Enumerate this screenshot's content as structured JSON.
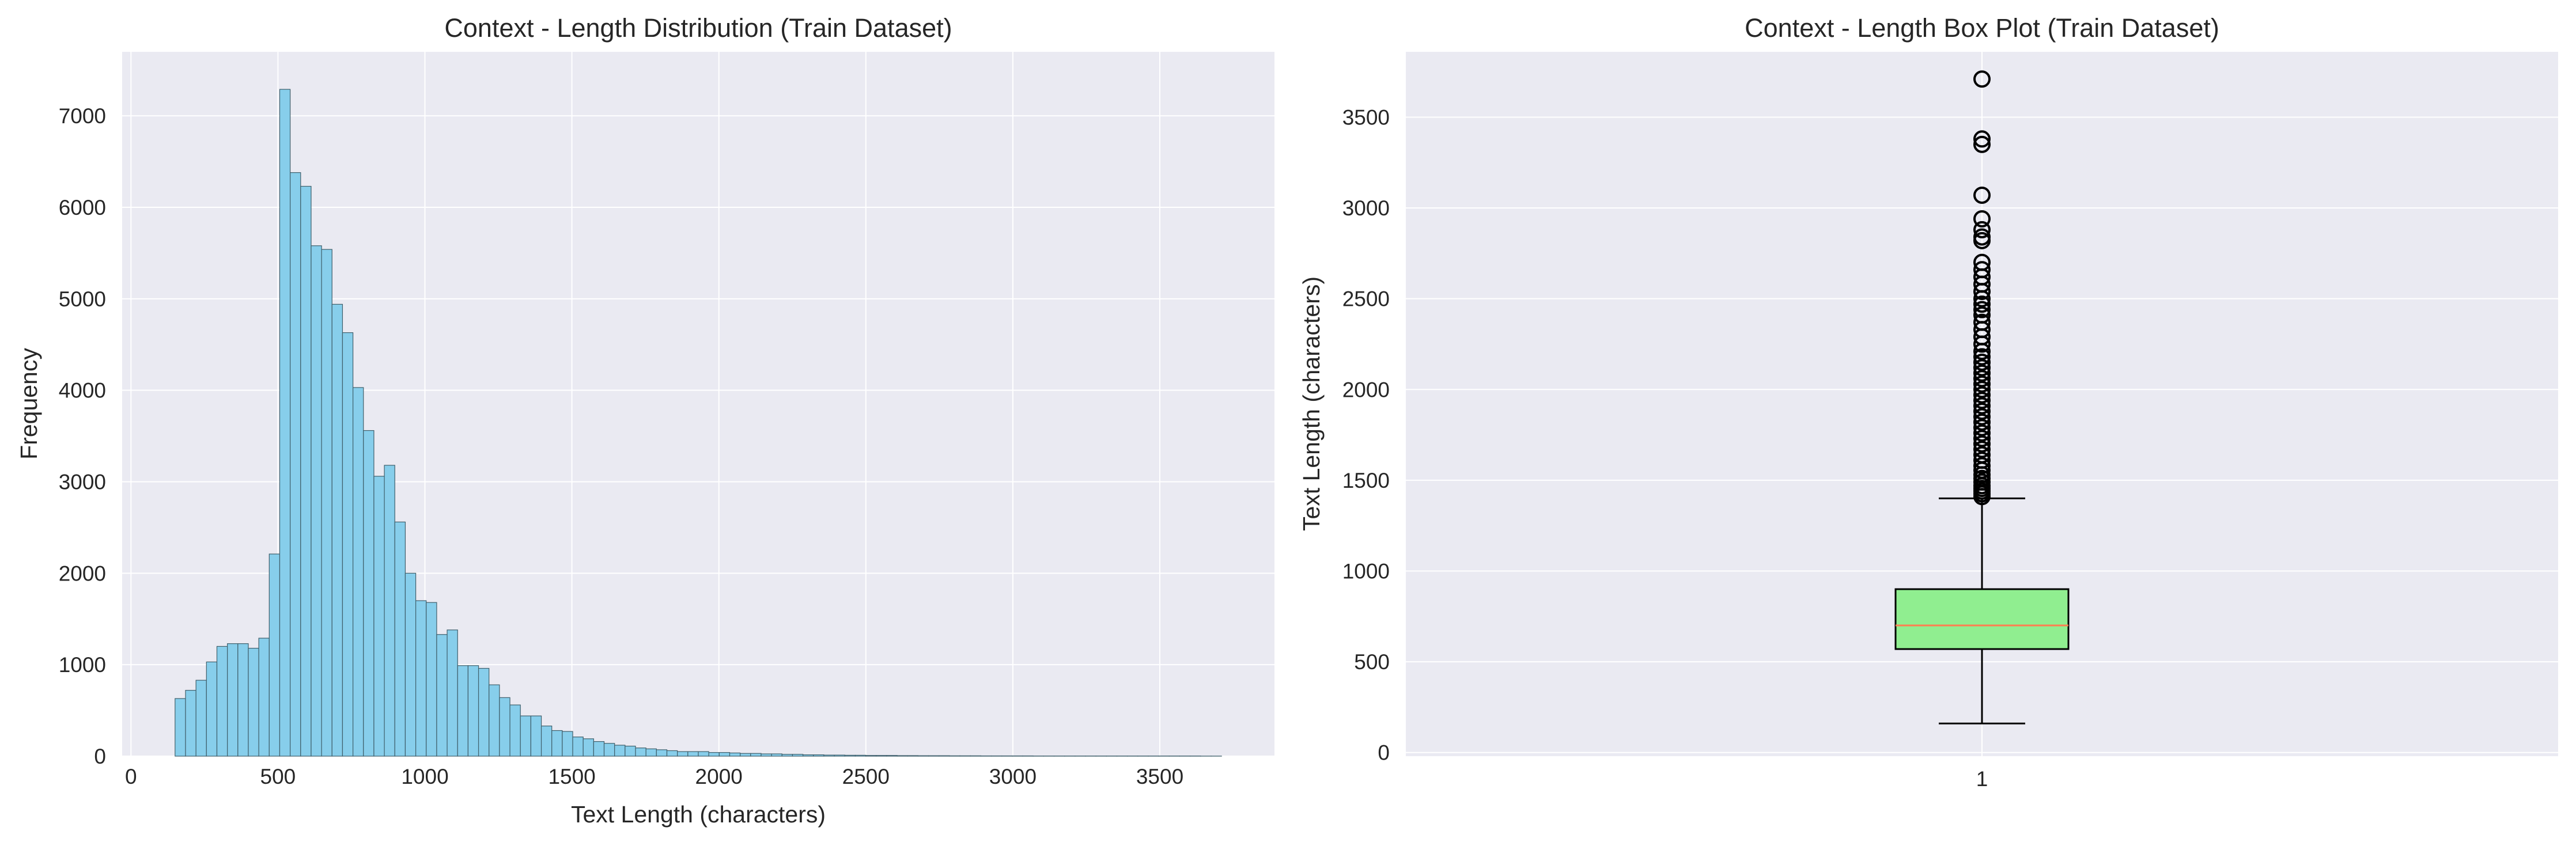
{
  "chart_data": [
    {
      "type": "bar",
      "subtype": "histogram",
      "title": "Context - Length Distribution (Train Dataset)",
      "xlabel": "Text Length (characters)",
      "ylabel": "Frequency",
      "xlim": [
        -30,
        3890
      ],
      "ylim": [
        0,
        7700
      ],
      "xticks": [
        0,
        500,
        1000,
        1500,
        2000,
        2500,
        3000,
        3500
      ],
      "yticks": [
        0,
        1000,
        2000,
        3000,
        4000,
        5000,
        6000,
        7000
      ],
      "grid": true,
      "bin_start": 150,
      "bin_width": 35.6,
      "values": [
        630,
        720,
        830,
        1030,
        1200,
        1230,
        1230,
        1180,
        1290,
        2210,
        7290,
        6380,
        6230,
        5580,
        5540,
        4940,
        4630,
        4030,
        3560,
        3060,
        3180,
        2560,
        2000,
        1700,
        1680,
        1330,
        1380,
        990,
        990,
        960,
        780,
        640,
        560,
        440,
        440,
        330,
        280,
        270,
        210,
        190,
        160,
        140,
        120,
        110,
        90,
        80,
        70,
        60,
        50,
        50,
        50,
        40,
        40,
        35,
        30,
        30,
        25,
        25,
        20,
        20,
        15,
        15,
        12,
        12,
        10,
        10,
        8,
        8,
        8,
        6,
        6,
        5,
        5,
        5,
        4,
        4,
        4,
        3,
        3,
        3,
        3,
        3,
        2,
        2,
        2,
        2,
        2,
        2,
        2,
        2,
        2,
        2,
        2,
        2,
        2,
        2,
        2,
        2,
        1,
        1
      ],
      "colors": {
        "bar_fill": "#87ceeb",
        "bar_edge": "#3f5f6b",
        "plot_bg": "#eaeaf2",
        "grid": "#ffffff"
      }
    },
    {
      "type": "box",
      "title": "Context - Length Box Plot (Train Dataset)",
      "ylabel": "Text Length (characters)",
      "categories": [
        "1"
      ],
      "ylim": [
        -20,
        3860
      ],
      "yticks": [
        0,
        500,
        1000,
        1500,
        2000,
        2500,
        3000,
        3500
      ],
      "grid": true,
      "box": {
        "q1": 570,
        "median": 700,
        "q3": 900,
        "whisker_low": 160,
        "whisker_high": 1400
      },
      "outliers": [
        1410,
        1425,
        1440,
        1455,
        1470,
        1490,
        1510,
        1530,
        1555,
        1580,
        1610,
        1640,
        1670,
        1700,
        1730,
        1760,
        1790,
        1820,
        1850,
        1880,
        1910,
        1940,
        1970,
        2000,
        2030,
        2060,
        2090,
        2120,
        2150,
        2180,
        2210,
        2250,
        2290,
        2330,
        2370,
        2410,
        2440,
        2470,
        2500,
        2540,
        2580,
        2620,
        2660,
        2700,
        2820,
        2840,
        2880,
        2940,
        3070,
        3350,
        3380,
        3710
      ],
      "colors": {
        "box_fill": "#90ee90",
        "median": "#ff7f50",
        "outline": "#000000",
        "plot_bg": "#eaeaf2",
        "grid": "#ffffff"
      }
    }
  ]
}
